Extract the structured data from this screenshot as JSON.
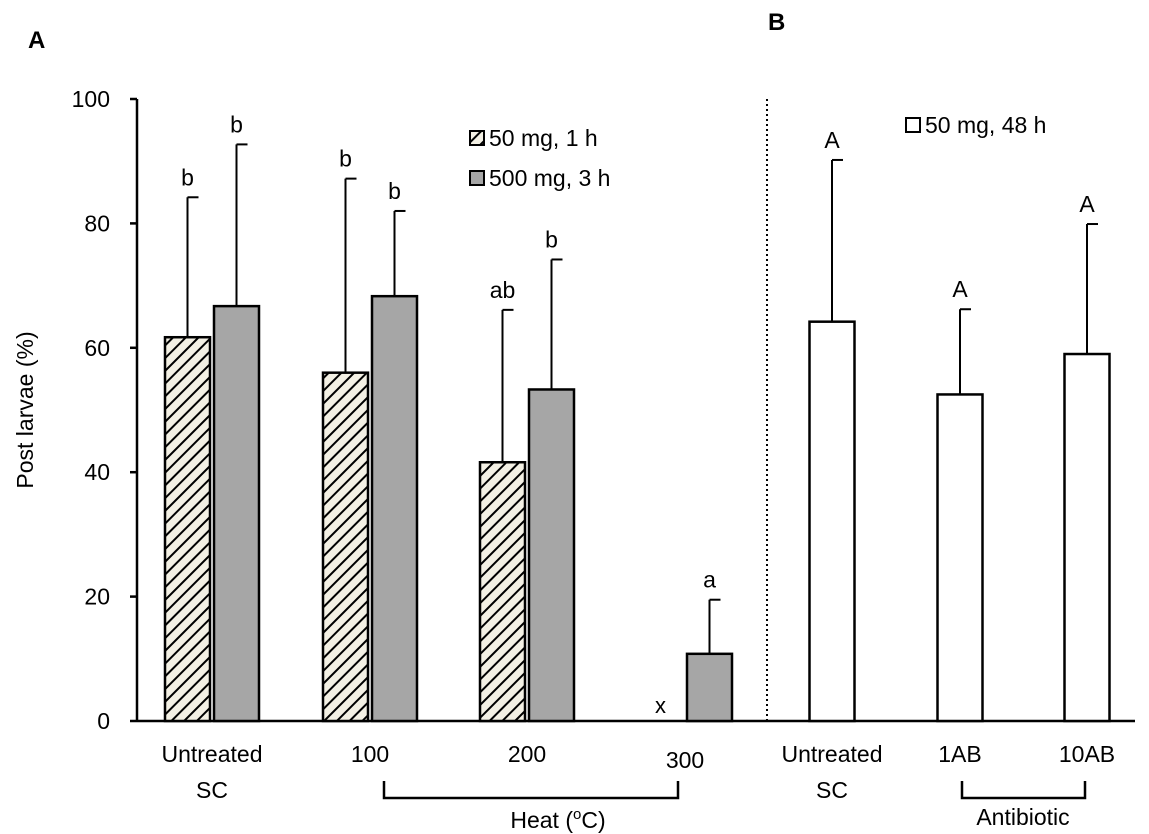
{
  "panel_labels": {
    "a": "A",
    "b": "B"
  },
  "colors": {
    "gray_bar": "#a6a6a6",
    "white_bar": "#ffffff",
    "hatch_bg": "#f3f0e4",
    "line": "#000000"
  },
  "chart_data": [
    {
      "panel": "A",
      "type": "bar",
      "ylabel": "Post larvae (%)",
      "ylim": [
        0,
        100
      ],
      "yticks": [
        0,
        20,
        40,
        60,
        80,
        100
      ],
      "grid": false,
      "legend_position": "top-right",
      "categories": [
        {
          "lines": [
            "Untreated",
            "SC"
          ]
        },
        {
          "lines": [
            "100"
          ]
        },
        {
          "lines": [
            "200"
          ]
        },
        {
          "lines": [
            "300"
          ]
        }
      ],
      "group_label": "Heat (",
      "group_label_sup": "o",
      "group_label_end": "C)",
      "series": [
        {
          "name": "50 mg, 1 h",
          "style": "hatched",
          "values": [
            61.7,
            56.0,
            41.6,
            null
          ],
          "errors": [
            22.5,
            31.2,
            24.5,
            null
          ],
          "letters": [
            "b",
            "b",
            "ab",
            "x"
          ]
        },
        {
          "name": "500 mg, 3 h",
          "style": "gray",
          "values": [
            66.7,
            68.3,
            53.3,
            10.8
          ],
          "errors": [
            26.0,
            13.7,
            20.9,
            8.7
          ],
          "letters": [
            "b",
            "b",
            "b",
            "a"
          ]
        }
      ]
    },
    {
      "panel": "B",
      "type": "bar",
      "ylim": [
        0,
        100
      ],
      "legend_position": "top-right",
      "categories": [
        {
          "lines": [
            "Untreated",
            "SC"
          ]
        },
        {
          "lines": [
            "1AB"
          ]
        },
        {
          "lines": [
            "10AB"
          ]
        }
      ],
      "group_label": "Antibiotic",
      "series": [
        {
          "name": "50 mg, 48 h",
          "style": "white",
          "values": [
            64.2,
            52.5,
            59.0
          ],
          "errors": [
            26.0,
            13.7,
            20.9
          ],
          "letters": [
            "A",
            "A",
            "A"
          ]
        }
      ]
    }
  ]
}
